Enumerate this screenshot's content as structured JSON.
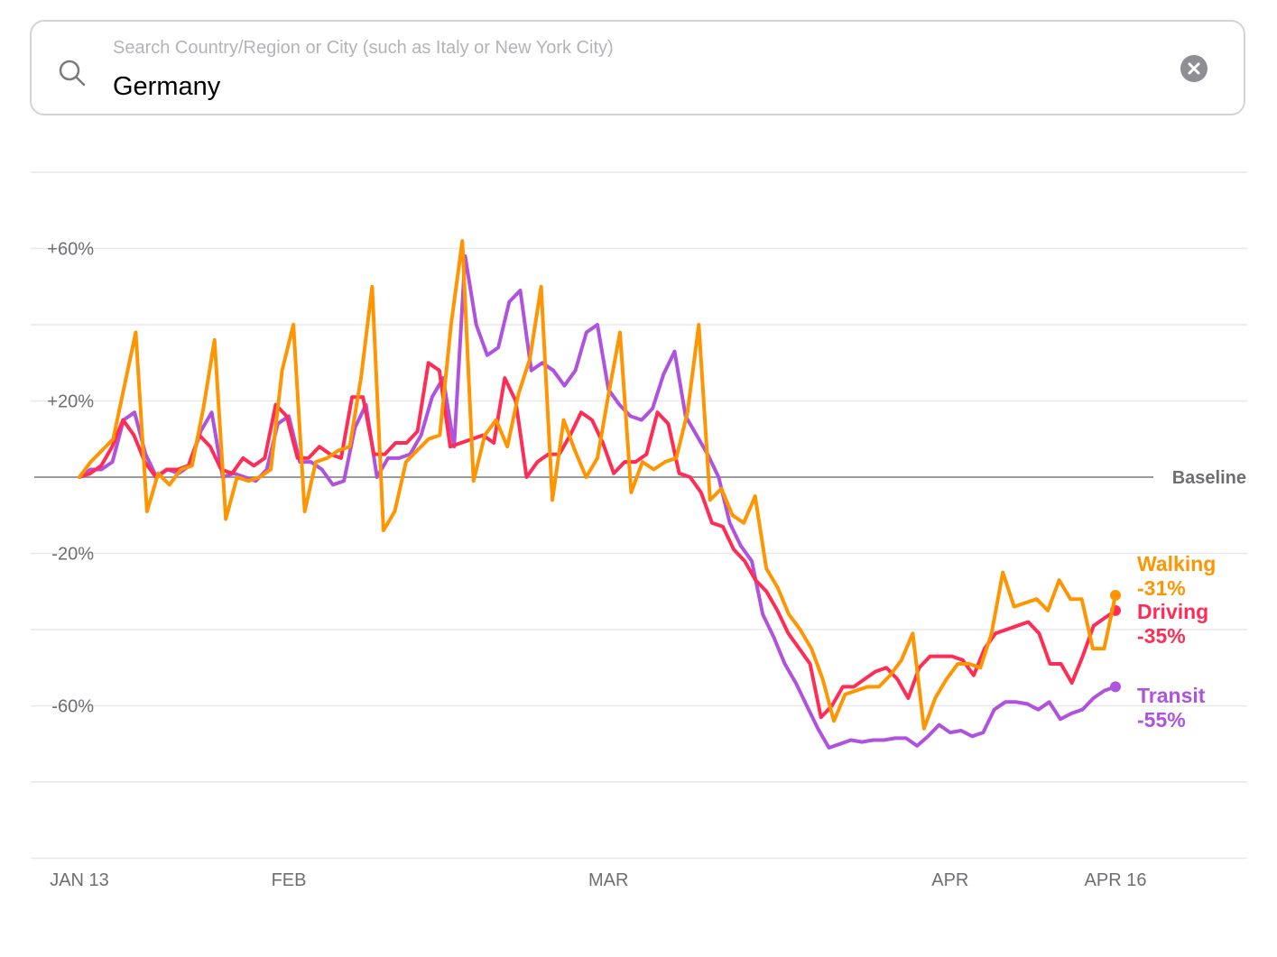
{
  "search": {
    "placeholder": "Search Country/Region or City (such as Italy or New York City)",
    "value": "Germany",
    "search_icon": "search-icon",
    "clear_icon": "clear-icon"
  },
  "chart_data": {
    "type": "line",
    "baseline_label": "Baseline",
    "ylim": [
      -100,
      80
    ],
    "y_ticks": [
      {
        "value": 60,
        "label": "+60%"
      },
      {
        "value": 20,
        "label": "+20%"
      },
      {
        "value": -20,
        "label": "-20%"
      },
      {
        "value": -60,
        "label": "-60%"
      }
    ],
    "grid_values": [
      80,
      60,
      40,
      20,
      -20,
      -40,
      -60,
      -80,
      -100
    ],
    "x_range": [
      "2020-01-13",
      "2020-04-16"
    ],
    "x_ticks": [
      {
        "date": "2020-01-13",
        "label": "JAN 13"
      },
      {
        "date": "2020-02-01",
        "label": "FEB"
      },
      {
        "date": "2020-03-01",
        "label": "MAR"
      },
      {
        "date": "2020-04-01",
        "label": "APR"
      },
      {
        "date": "2020-04-16",
        "label": "APR 16"
      }
    ],
    "grid": true,
    "colors": {
      "Walking": "#ff9500",
      "Driving": "#ff2d55",
      "Transit": "#af52de"
    },
    "series": [
      {
        "name": "Transit",
        "end_label": "-55%",
        "values": [
          0,
          2,
          2,
          4,
          15,
          17,
          6,
          0,
          2,
          1,
          3,
          12,
          17,
          0,
          1,
          0,
          -1,
          2,
          14,
          16,
          4,
          4,
          2,
          -2,
          -1,
          13,
          19,
          0,
          5,
          5,
          6,
          11,
          21,
          26,
          8,
          58,
          40,
          32,
          34,
          46,
          49,
          28,
          30,
          28,
          24,
          28,
          38,
          40,
          23,
          19,
          16,
          15,
          18,
          27,
          33,
          16,
          11,
          6,
          0,
          -12,
          -18,
          -22,
          -36,
          -42,
          -49,
          -54,
          -60,
          -66,
          -71,
          -70,
          -69,
          -69.5,
          -69,
          -69,
          -68.5,
          -68.5,
          -70.5,
          -68,
          -65,
          -67,
          -66.5,
          -68,
          -67,
          -61,
          -59,
          -59,
          -59.5,
          -61,
          -59,
          -63.5,
          -62,
          -61,
          -58,
          -56,
          -55
        ]
      },
      {
        "name": "Driving",
        "end_label": "-35%",
        "values": [
          0,
          1,
          3,
          8,
          15,
          11,
          4,
          0,
          2,
          2,
          3,
          11,
          8,
          2,
          1,
          5,
          3,
          5,
          19,
          16,
          5,
          5,
          8,
          6,
          5,
          21,
          21,
          6,
          6,
          9,
          9,
          12,
          30,
          28,
          8,
          9,
          10,
          11,
          9,
          26,
          20,
          0,
          4,
          6,
          6,
          11,
          17,
          15,
          9,
          1,
          4,
          4,
          6,
          17,
          14,
          1,
          0,
          -4,
          -12,
          -13,
          -19,
          -22,
          -27,
          -30,
          -35,
          -41,
          -45,
          -49,
          -63,
          -60,
          -55,
          -55,
          -53,
          -51,
          -50,
          -53,
          -58,
          -50,
          -47,
          -47,
          -47,
          -48,
          -52,
          -45,
          -41,
          -40,
          -39,
          -38,
          -41,
          -49,
          -49,
          -54,
          -47,
          -39,
          -37,
          -35
        ]
      },
      {
        "name": "Walking",
        "end_label": "-31%",
        "values": [
          0,
          4,
          7,
          10,
          24,
          38,
          -9,
          1,
          -2,
          2,
          3,
          18,
          36,
          -11,
          0,
          -1,
          0,
          2,
          28,
          40,
          -9,
          4,
          5,
          7,
          8,
          26,
          50,
          -14,
          -9,
          4,
          7,
          10,
          11,
          40,
          62,
          -1,
          11,
          15,
          8,
          22,
          31,
          50,
          -6,
          15,
          7,
          0,
          5,
          22,
          38,
          -4,
          4,
          2,
          4,
          5,
          17,
          40,
          -6,
          -3,
          -10,
          -12,
          -5,
          -24,
          -29,
          -36,
          -40,
          -45,
          -53,
          -64,
          -57,
          -56,
          -55,
          -55,
          -52,
          -48,
          -41,
          -66,
          -58,
          -53,
          -49,
          -49,
          -50,
          -41,
          -25,
          -34,
          -33,
          -32,
          -35,
          -27,
          -32,
          -32,
          -45,
          -45,
          -31
        ]
      }
    ]
  }
}
